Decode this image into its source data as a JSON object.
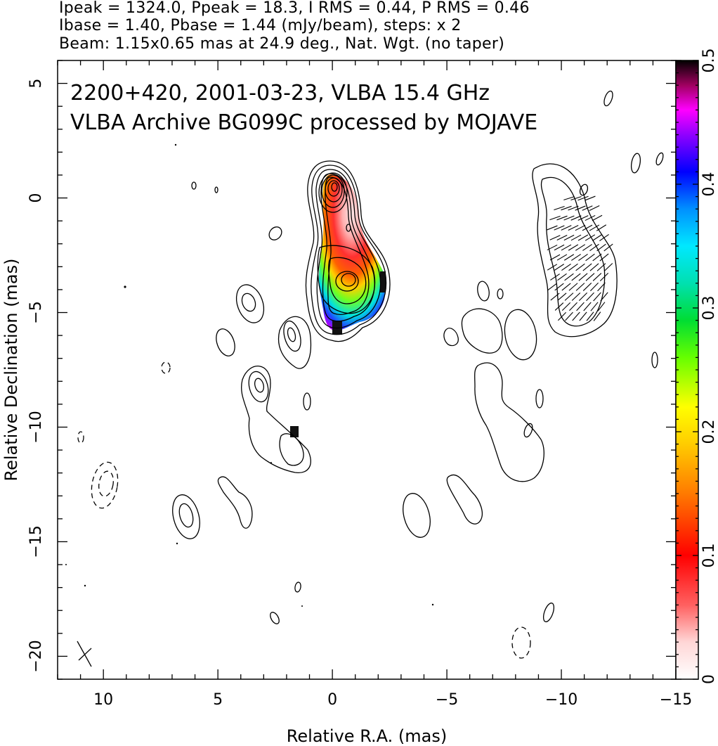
{
  "header": {
    "line1": "Ipeak = 1324.0, Ppeak = 18.3, I RMS = 0.44, P RMS = 0.46",
    "line2": "Ibase = 1.40, Pbase = 1.44 (mJy/beam), steps: x 2",
    "line3": "Beam: 1.15x0.65 mas at 24.9 deg., Nat. Wgt. (no taper)"
  },
  "chart_data": {
    "type": "heatmap",
    "title": "2200+420, 2001-03-23, VLBA 15.4 GHz",
    "subtitle": "VLBA Archive BG099C processed by MOJAVE",
    "xlabel": "Relative R.A. (mas)",
    "ylabel": "Relative Declination (mas)",
    "xlim": [
      12,
      -15
    ],
    "ylim": [
      -21,
      6
    ],
    "xticks": [
      10,
      5,
      0,
      -5,
      -10,
      -15
    ],
    "xtick_labels": [
      "10",
      "5",
      "0",
      "−5",
      "−10",
      "−15"
    ],
    "yticks": [
      5,
      0,
      -5,
      -10,
      -15,
      -20
    ],
    "ytick_labels": [
      "5",
      "0",
      "−5",
      "−10",
      "−15",
      "−20"
    ],
    "colorbar": {
      "range": [
        0,
        0.5
      ],
      "ticks": [
        0,
        0.1,
        0.2,
        0.3,
        0.4,
        0.5
      ],
      "tick_labels": [
        "0",
        "0.1",
        "0.2",
        "0.3",
        "0.4",
        "0.5"
      ]
    },
    "contours": {
      "base_mJy_per_beam": 1.4,
      "step_factor": 2,
      "peak_mJy_per_beam": 1324.0
    },
    "fractional_polarization_regions": [
      {
        "ra": 0.2,
        "dec": -0.4,
        "value": 0.03
      },
      {
        "ra": -0.3,
        "dec": -1.8,
        "value": 0.12
      },
      {
        "ra": -0.5,
        "dec": -3.3,
        "value": 0.22
      },
      {
        "ra": 0.8,
        "dec": -4.6,
        "value": 0.3
      },
      {
        "ra": -1.2,
        "dec": -3.8,
        "value": 0.28
      }
    ],
    "beam": {
      "major_mas": 1.15,
      "minor_mas": 0.65,
      "pa_deg": 24.9
    }
  }
}
